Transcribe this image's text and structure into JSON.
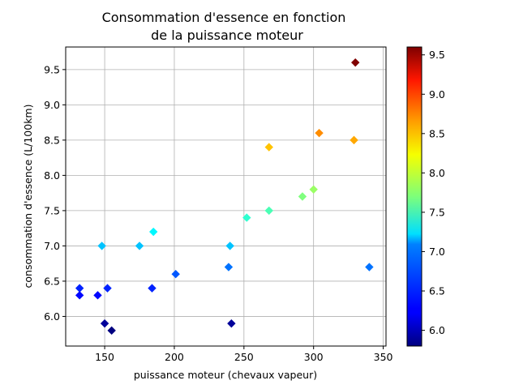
{
  "chart_data": {
    "type": "scatter",
    "title_lines": [
      "Consommation d'essence en fonction",
      "de la puissance moteur"
    ],
    "xlabel": "puissance moteur (chevaux vapeur)",
    "ylabel": "consommation d'essence (L/100km)",
    "xlim": [
      122,
      352
    ],
    "ylim": [
      5.58,
      9.82
    ],
    "xticks": [
      150,
      200,
      250,
      300,
      350
    ],
    "yticks": [
      6.0,
      6.5,
      7.0,
      7.5,
      8.0,
      8.5,
      9.0,
      9.5
    ],
    "grid": true,
    "marker": "diamond",
    "colormap": "jet",
    "colorbar": {
      "range": [
        5.8,
        9.6
      ],
      "ticks": [
        6.0,
        6.5,
        7.0,
        7.5,
        8.0,
        8.5,
        9.0,
        9.5
      ]
    },
    "points": [
      {
        "x": 132,
        "y": 6.4
      },
      {
        "x": 132,
        "y": 6.3
      },
      {
        "x": 145,
        "y": 6.3
      },
      {
        "x": 148,
        "y": 7.0
      },
      {
        "x": 150,
        "y": 5.9
      },
      {
        "x": 152,
        "y": 6.4
      },
      {
        "x": 155,
        "y": 5.8
      },
      {
        "x": 175,
        "y": 7.0
      },
      {
        "x": 184,
        "y": 6.4
      },
      {
        "x": 185,
        "y": 7.2
      },
      {
        "x": 201,
        "y": 6.6
      },
      {
        "x": 239,
        "y": 6.7
      },
      {
        "x": 240,
        "y": 7.0
      },
      {
        "x": 241,
        "y": 5.9
      },
      {
        "x": 252,
        "y": 7.4
      },
      {
        "x": 268,
        "y": 8.4
      },
      {
        "x": 268,
        "y": 7.5
      },
      {
        "x": 292,
        "y": 7.7
      },
      {
        "x": 300,
        "y": 7.8
      },
      {
        "x": 304,
        "y": 8.6
      },
      {
        "x": 329,
        "y": 8.5
      },
      {
        "x": 330,
        "y": 9.6
      },
      {
        "x": 340,
        "y": 6.7
      }
    ]
  }
}
